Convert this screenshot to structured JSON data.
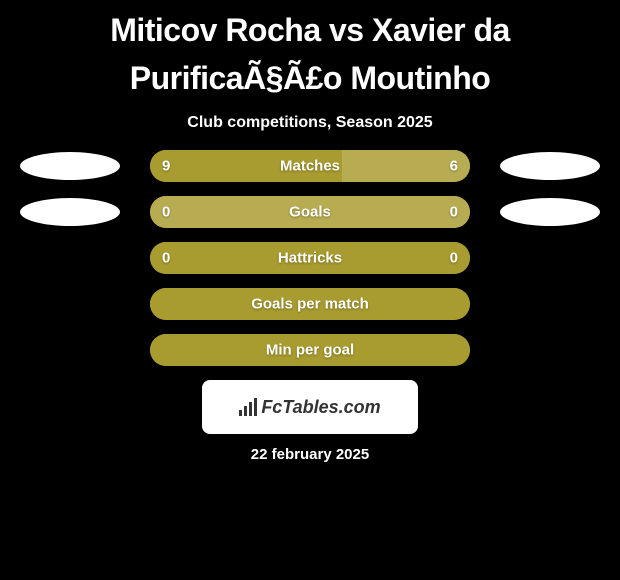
{
  "title": "Miticov Rocha vs Xavier da PurificaÃ§Ã£o Moutinho",
  "subtitle": "Club competitions, Season 2025",
  "colors": {
    "background": "#000000",
    "bar_primary": "#a89b2f",
    "bar_secondary": "#b8ac52",
    "oval": "#ffffff",
    "text": "#ffffff",
    "badge_bg": "#ffffff",
    "badge_text": "#333333"
  },
  "stats": [
    {
      "label": "Matches",
      "left_value": "9",
      "right_value": "6",
      "left_fill_pct": 60,
      "right_fill_pct": 40,
      "left_color": "#a89b2f",
      "right_color": "#b8ac52",
      "show_ovals": true
    },
    {
      "label": "Goals",
      "left_value": "0",
      "right_value": "0",
      "left_fill_pct": 0,
      "right_fill_pct": 100,
      "left_color": "#a89b2f",
      "right_color": "#b8ac52",
      "show_ovals": true
    },
    {
      "label": "Hattricks",
      "left_value": "0",
      "right_value": "0",
      "left_fill_pct": 100,
      "right_fill_pct": 0,
      "left_color": "#a89b2f",
      "right_color": "#b8ac52",
      "show_ovals": false
    },
    {
      "label": "Goals per match",
      "left_value": "",
      "right_value": "",
      "left_fill_pct": 100,
      "right_fill_pct": 0,
      "left_color": "#a89b2f",
      "right_color": "#b8ac52",
      "show_ovals": false
    },
    {
      "label": "Min per goal",
      "left_value": "",
      "right_value": "",
      "left_fill_pct": 100,
      "right_fill_pct": 0,
      "left_color": "#a89b2f",
      "right_color": "#b8ac52",
      "show_ovals": false
    }
  ],
  "footer": {
    "badge_text": "FcTables.com",
    "date": "22 february 2025"
  }
}
